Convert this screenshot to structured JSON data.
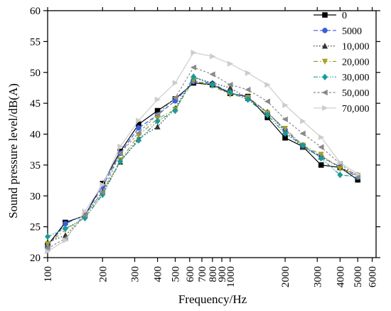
{
  "chart_data": {
    "type": "line",
    "title": "",
    "xlabel": "Frequency/Hz",
    "ylabel": "Sound pressure level/dB(A)",
    "xscale": "log",
    "xlim": [
      100,
      6300
    ],
    "ylim": [
      20,
      60
    ],
    "x_ticks": [
      100,
      200,
      300,
      400,
      500,
      600,
      700,
      800,
      900,
      1000,
      2000,
      3000,
      4000,
      5000,
      6000
    ],
    "x_tick_labels": [
      "100",
      "200",
      "300",
      "400",
      "500",
      "600",
      "700",
      "800",
      "900",
      "1000",
      "2000",
      "3000",
      "4000",
      "5000",
      "6000"
    ],
    "y_ticks": [
      20,
      25,
      30,
      35,
      40,
      45,
      50,
      55,
      60
    ],
    "y_tick_labels": [
      "20",
      "25",
      "30",
      "35",
      "40",
      "45",
      "50",
      "55",
      "60"
    ],
    "grid": false,
    "legend_position": "top-right",
    "x": [
      100,
      125,
      160,
      200,
      250,
      315,
      400,
      500,
      630,
      800,
      1000,
      1250,
      1600,
      2000,
      2500,
      3150,
      4000,
      5000
    ],
    "series": [
      {
        "name": "0",
        "color": "#000000",
        "dash": "solid",
        "marker": "square",
        "values": [
          22.0,
          25.7,
          26.8,
          32.0,
          37.2,
          41.6,
          43.8,
          45.7,
          48.3,
          48.0,
          46.6,
          46.1,
          42.7,
          39.4,
          38.0,
          35.0,
          34.6,
          32.6
        ]
      },
      {
        "name": "5000",
        "color": "#3a5fd9",
        "dash": "dashed",
        "marker": "circle",
        "values": [
          21.8,
          25.5,
          26.9,
          31.5,
          36.9,
          41.0,
          43.1,
          45.4,
          48.5,
          48.2,
          46.7,
          46.0,
          43.5,
          40.7,
          38.1,
          36.4,
          34.7,
          33.0
        ]
      },
      {
        "name": "10,000",
        "color": "#333333",
        "dash": "dotted",
        "marker": "triangle-up",
        "values": [
          22.5,
          23.6,
          26.9,
          30.7,
          35.5,
          39.3,
          41.2,
          44.2,
          49.2,
          48.3,
          47.5,
          45.8,
          43.6,
          40.4,
          37.9,
          36.3,
          34.6,
          33.4
        ]
      },
      {
        "name": "20,000",
        "color": "#a6a020",
        "dash": "dashdot",
        "marker": "triangle-down",
        "values": [
          22.2,
          24.5,
          26.5,
          30.3,
          35.8,
          39.8,
          42.5,
          44.0,
          48.7,
          47.8,
          46.4,
          45.9,
          43.4,
          40.9,
          38.2,
          36.7,
          34.4,
          33.3
        ]
      },
      {
        "name": "30,000",
        "color": "#1a9a9a",
        "dash": "dashdotdot",
        "marker": "diamond",
        "values": [
          23.4,
          24.7,
          26.4,
          30.2,
          35.6,
          39.0,
          42.1,
          43.8,
          49.3,
          48.0,
          46.8,
          45.6,
          43.1,
          40.1,
          38.2,
          36.1,
          33.4,
          33.1
        ]
      },
      {
        "name": "50,000",
        "color": "#8a8a8a",
        "dash": "shortdash",
        "marker": "triangle-left",
        "values": [
          21.5,
          23.1,
          26.9,
          30.6,
          36.9,
          40.2,
          43.2,
          45.9,
          50.8,
          49.7,
          48.0,
          47.2,
          45.3,
          42.4,
          40.1,
          37.9,
          35.2,
          33.1
        ]
      },
      {
        "name": "70,000",
        "color": "#cccccc",
        "dash": "solid",
        "marker": "triangle-right",
        "values": [
          21.0,
          22.8,
          27.5,
          31.8,
          38.0,
          42.2,
          45.6,
          48.3,
          53.2,
          52.6,
          51.4,
          49.9,
          48.0,
          44.7,
          42.1,
          39.5,
          35.4,
          33.5
        ]
      }
    ]
  }
}
